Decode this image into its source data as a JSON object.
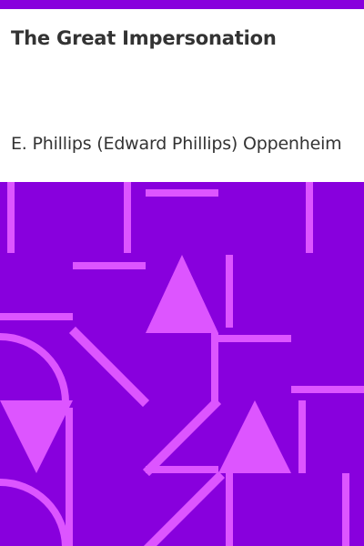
{
  "book": {
    "title": "The Great Impersonation",
    "author": "E. Phillips (Edward Phillips) Oppenheim"
  },
  "colors": {
    "accent": "#8800dd",
    "pattern_background": "#8800dd",
    "pattern_shapes": "#dd55ff",
    "text": "#333333",
    "header_background": "#ffffff"
  }
}
